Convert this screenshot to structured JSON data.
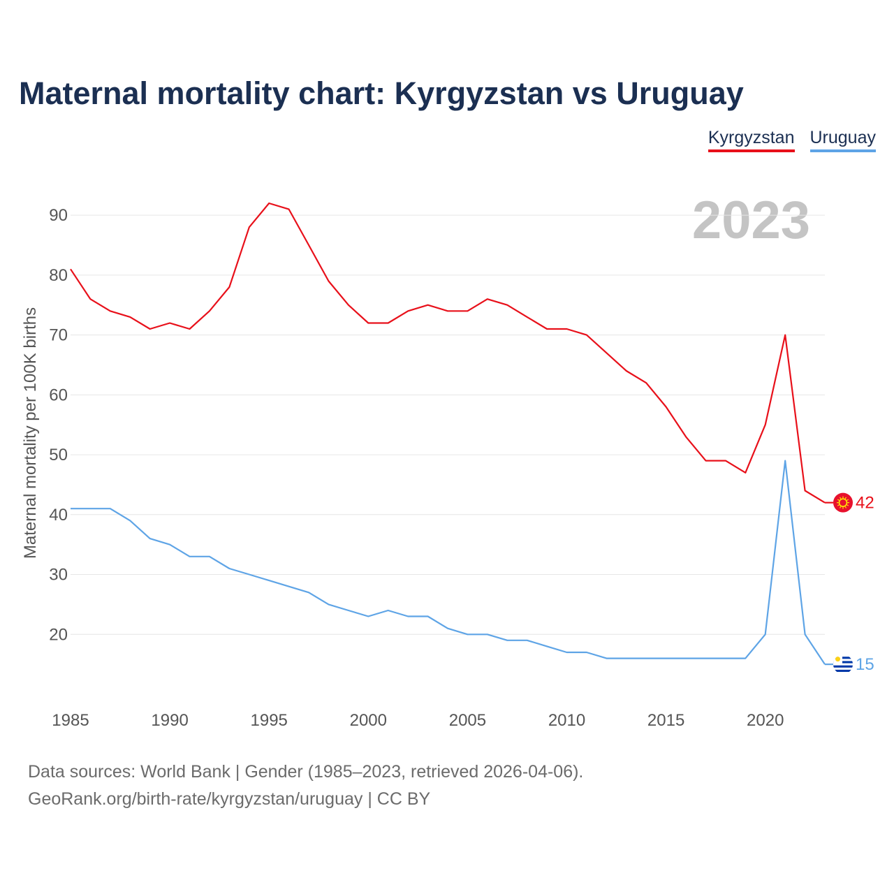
{
  "title": "Maternal mortality chart: Kyrgyzstan vs Uruguay",
  "legend": {
    "kyrgyzstan": "Kyrgyzstan",
    "uruguay": "Uruguay"
  },
  "source": {
    "line1": "Data sources: World Bank | Gender (1985–2023, retrieved 2026-04-06).",
    "line2": "GeoRank.org/birth-rate/kyrgyzstan/uruguay | CC BY"
  },
  "colors": {
    "kyrgyzstan": "#e8101a",
    "uruguay": "#5ea4e6",
    "title": "#1b2f52",
    "year": "#c4c4c4"
  },
  "chart_data": {
    "type": "line",
    "title": "Maternal mortality chart: Kyrgyzstan vs Uruguay",
    "year_label": "2023",
    "xlabel": "",
    "ylabel": "Maternal mortality per 100K births",
    "xlim": [
      1985,
      2023
    ],
    "ylim": [
      10,
      92
    ],
    "x_ticks": [
      1985,
      1990,
      1995,
      2000,
      2005,
      2010,
      2015,
      2020
    ],
    "y_ticks": [
      20,
      30,
      40,
      50,
      60,
      70,
      80,
      90
    ],
    "x": [
      1985,
      1986,
      1987,
      1988,
      1989,
      1990,
      1991,
      1992,
      1993,
      1994,
      1995,
      1996,
      1997,
      1998,
      1999,
      2000,
      2001,
      2002,
      2003,
      2004,
      2005,
      2006,
      2007,
      2008,
      2009,
      2010,
      2011,
      2012,
      2013,
      2014,
      2015,
      2016,
      2017,
      2018,
      2019,
      2020,
      2021,
      2022,
      2023
    ],
    "series": [
      {
        "name": "Kyrgyzstan",
        "color": "#e8101a",
        "end_label": "42",
        "flag": "kyrgyzstan-flag-icon",
        "values": [
          81,
          76,
          74,
          73,
          71,
          72,
          71,
          74,
          78,
          88,
          92,
          91,
          85,
          79,
          75,
          72,
          72,
          74,
          75,
          74,
          74,
          76,
          75,
          73,
          71,
          71,
          70,
          67,
          64,
          62,
          58,
          53,
          49,
          49,
          47,
          55,
          70,
          44,
          42
        ]
      },
      {
        "name": "Uruguay",
        "color": "#5ea4e6",
        "end_label": "15",
        "flag": "uruguay-flag-icon",
        "values": [
          41,
          41,
          41,
          39,
          36,
          35,
          33,
          33,
          31,
          30,
          29,
          28,
          27,
          25,
          24,
          23,
          24,
          23,
          23,
          21,
          20,
          20,
          19,
          19,
          18,
          17,
          17,
          16,
          16,
          16,
          16,
          16,
          16,
          16,
          16,
          20,
          49,
          20,
          15
        ]
      }
    ]
  }
}
